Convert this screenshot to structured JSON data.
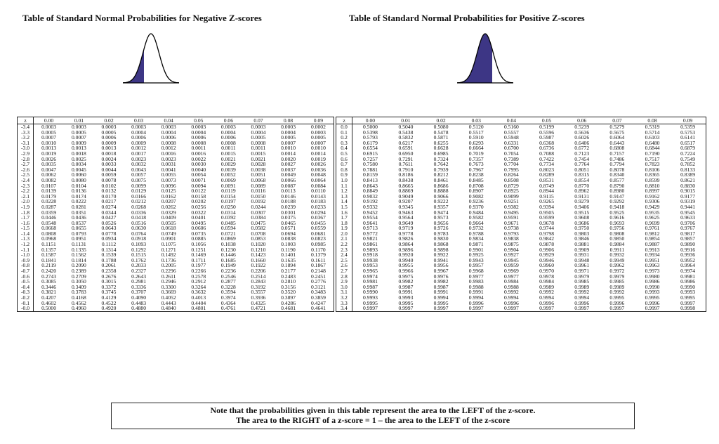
{
  "left": {
    "title": "Table of Standard Normal Probabilities for Negative Z-scores",
    "header": [
      "z",
      "0.00",
      "0.01",
      "0.02",
      "0.03",
      "0.04",
      "0.05",
      "0.06",
      "0.07",
      "0.08",
      "0.09"
    ],
    "rows": [
      [
        "-3.4",
        "0.0003",
        "0.0003",
        "0.0003",
        "0.0003",
        "0.0003",
        "0.0003",
        "0.0003",
        "0.0003",
        "0.0003",
        "0.0002"
      ],
      [
        "-3.3",
        "0.0005",
        "0.0005",
        "0.0005",
        "0.0004",
        "0.0004",
        "0.0004",
        "0.0004",
        "0.0004",
        "0.0004",
        "0.0003"
      ],
      [
        "-3.2",
        "0.0007",
        "0.0007",
        "0.0006",
        "0.0006",
        "0.0006",
        "0.0006",
        "0.0006",
        "0.0005",
        "0.0005",
        "0.0005"
      ],
      [
        "-3.1",
        "0.0010",
        "0.0009",
        "0.0009",
        "0.0009",
        "0.0008",
        "0.0008",
        "0.0008",
        "0.0008",
        "0.0007",
        "0.0007"
      ],
      [
        "-3.0",
        "0.0013",
        "0.0013",
        "0.0013",
        "0.0012",
        "0.0012",
        "0.0011",
        "0.0011",
        "0.0011",
        "0.0010",
        "0.0010"
      ],
      [
        "-2.9",
        "0.0019",
        "0.0018",
        "0.0018",
        "0.0017",
        "0.0016",
        "0.0016",
        "0.0015",
        "0.0015",
        "0.0014",
        "0.0014"
      ],
      [
        "-2.8",
        "0.0026",
        "0.0025",
        "0.0024",
        "0.0023",
        "0.0023",
        "0.0022",
        "0.0021",
        "0.0021",
        "0.0020",
        "0.0019"
      ],
      [
        "-2.7",
        "0.0035",
        "0.0034",
        "0.0033",
        "0.0032",
        "0.0031",
        "0.0030",
        "0.0029",
        "0.0028",
        "0.0027",
        "0.0026"
      ],
      [
        "-2.6",
        "0.0047",
        "0.0045",
        "0.0044",
        "0.0043",
        "0.0041",
        "0.0040",
        "0.0039",
        "0.0038",
        "0.0037",
        "0.0036"
      ],
      [
        "-2.5",
        "0.0062",
        "0.0060",
        "0.0059",
        "0.0057",
        "0.0055",
        "0.0054",
        "0.0052",
        "0.0051",
        "0.0049",
        "0.0048"
      ],
      [
        "-2.4",
        "0.0082",
        "0.0080",
        "0.0078",
        "0.0075",
        "0.0073",
        "0.0071",
        "0.0069",
        "0.0068",
        "0.0066",
        "0.0064"
      ],
      [
        "-2.3",
        "0.0107",
        "0.0104",
        "0.0102",
        "0.0099",
        "0.0096",
        "0.0094",
        "0.0091",
        "0.0089",
        "0.0087",
        "0.0084"
      ],
      [
        "-2.2",
        "0.0139",
        "0.0136",
        "0.0132",
        "0.0129",
        "0.0125",
        "0.0122",
        "0.0119",
        "0.0116",
        "0.0113",
        "0.0110"
      ],
      [
        "-2.1",
        "0.0179",
        "0.0174",
        "0.0170",
        "0.0166",
        "0.0162",
        "0.0158",
        "0.0154",
        "0.0150",
        "0.0146",
        "0.0143"
      ],
      [
        "-2.0",
        "0.0228",
        "0.0222",
        "0.0217",
        "0.0212",
        "0.0207",
        "0.0202",
        "0.0197",
        "0.0192",
        "0.0188",
        "0.0183"
      ],
      [
        "-1.9",
        "0.0287",
        "0.0281",
        "0.0274",
        "0.0268",
        "0.0262",
        "0.0256",
        "0.0250",
        "0.0244",
        "0.0239",
        "0.0233"
      ],
      [
        "-1.8",
        "0.0359",
        "0.0351",
        "0.0344",
        "0.0336",
        "0.0329",
        "0.0322",
        "0.0314",
        "0.0307",
        "0.0301",
        "0.0294"
      ],
      [
        "-1.7",
        "0.0446",
        "0.0436",
        "0.0427",
        "0.0418",
        "0.0409",
        "0.0401",
        "0.0392",
        "0.0384",
        "0.0375",
        "0.0367"
      ],
      [
        "-1.6",
        "0.0548",
        "0.0537",
        "0.0526",
        "0.0516",
        "0.0505",
        "0.0495",
        "0.0485",
        "0.0475",
        "0.0465",
        "0.0455"
      ],
      [
        "-1.5",
        "0.0668",
        "0.0655",
        "0.0643",
        "0.0630",
        "0.0618",
        "0.0606",
        "0.0594",
        "0.0582",
        "0.0571",
        "0.0559"
      ],
      [
        "-1.4",
        "0.0808",
        "0.0793",
        "0.0778",
        "0.0764",
        "0.0749",
        "0.0735",
        "0.0721",
        "0.0708",
        "0.0694",
        "0.0681"
      ],
      [
        "-1.3",
        "0.0968",
        "0.0951",
        "0.0934",
        "0.0918",
        "0.0901",
        "0.0885",
        "0.0869",
        "0.0853",
        "0.0838",
        "0.0823"
      ],
      [
        "-1.2",
        "0.1151",
        "0.1131",
        "0.1112",
        "0.1093",
        "0.1075",
        "0.1056",
        "0.1038",
        "0.1020",
        "0.1003",
        "0.0985"
      ],
      [
        "-1.1",
        "0.1357",
        "0.1335",
        "0.1314",
        "0.1292",
        "0.1271",
        "0.1251",
        "0.1230",
        "0.1210",
        "0.1190",
        "0.1170"
      ],
      [
        "-1.0",
        "0.1587",
        "0.1562",
        "0.1539",
        "0.1515",
        "0.1492",
        "0.1469",
        "0.1446",
        "0.1423",
        "0.1401",
        "0.1379"
      ],
      [
        "-0.9",
        "0.1841",
        "0.1814",
        "0.1788",
        "0.1762",
        "0.1736",
        "0.1711",
        "0.1685",
        "0.1660",
        "0.1635",
        "0.1611"
      ],
      [
        "-0.8",
        "0.2119",
        "0.2090",
        "0.2061",
        "0.2033",
        "0.2005",
        "0.1977",
        "0.1949",
        "0.1922",
        "0.1894",
        "0.1867"
      ],
      [
        "-0.7",
        "0.2420",
        "0.2389",
        "0.2358",
        "0.2327",
        "0.2296",
        "0.2266",
        "0.2236",
        "0.2206",
        "0.2177",
        "0.2148"
      ],
      [
        "-0.6",
        "0.2743",
        "0.2709",
        "0.2676",
        "0.2643",
        "0.2611",
        "0.2578",
        "0.2546",
        "0.2514",
        "0.2483",
        "0.2451"
      ],
      [
        "-0.5",
        "0.3085",
        "0.3050",
        "0.3015",
        "0.2981",
        "0.2946",
        "0.2912",
        "0.2877",
        "0.2843",
        "0.2810",
        "0.2776"
      ],
      [
        "-0.4",
        "0.3446",
        "0.3409",
        "0.3372",
        "0.3336",
        "0.3300",
        "0.3264",
        "0.3228",
        "0.3192",
        "0.3156",
        "0.3121"
      ],
      [
        "-0.3",
        "0.3821",
        "0.3783",
        "0.3745",
        "0.3707",
        "0.3669",
        "0.3632",
        "0.3594",
        "0.3557",
        "0.3520",
        "0.3483"
      ],
      [
        "-0.2",
        "0.4207",
        "0.4168",
        "0.4129",
        "0.4090",
        "0.4052",
        "0.4013",
        "0.3974",
        "0.3936",
        "0.3897",
        "0.3859"
      ],
      [
        "-0.1",
        "0.4602",
        "0.4562",
        "0.4522",
        "0.4483",
        "0.4443",
        "0.4404",
        "0.4364",
        "0.4325",
        "0.4286",
        "0.4247"
      ],
      [
        "-0.0",
        "0.5000",
        "0.4960",
        "0.4920",
        "0.4880",
        "0.4840",
        "0.4801",
        "0.4761",
        "0.4721",
        "0.4681",
        "0.4641"
      ]
    ]
  },
  "right": {
    "title": "Table of Standard Normal Probabilities for Positive Z-scores",
    "header": [
      "z",
      "0.00",
      "0.01",
      "0.02",
      "0.03",
      "0.04",
      "0.05",
      "0.06",
      "0.07",
      "0.08",
      "0.09"
    ],
    "rows": [
      [
        "0.0",
        "0.5000",
        "0.5040",
        "0.5080",
        "0.5120",
        "0.5160",
        "0.5199",
        "0.5239",
        "0.5279",
        "0.5319",
        "0.5359"
      ],
      [
        "0.1",
        "0.5398",
        "0.5438",
        "0.5478",
        "0.5517",
        "0.5557",
        "0.5596",
        "0.5636",
        "0.5675",
        "0.5714",
        "0.5753"
      ],
      [
        "0.2",
        "0.5793",
        "0.5832",
        "0.5871",
        "0.5910",
        "0.5948",
        "0.5987",
        "0.6026",
        "0.6064",
        "0.6103",
        "0.6141"
      ],
      [
        "0.3",
        "0.6179",
        "0.6217",
        "0.6255",
        "0.6293",
        "0.6331",
        "0.6368",
        "0.6406",
        "0.6443",
        "0.6480",
        "0.6517"
      ],
      [
        "0.4",
        "0.6554",
        "0.6591",
        "0.6628",
        "0.6664",
        "0.6700",
        "0.6736",
        "0.6772",
        "0.6808",
        "0.6844",
        "0.6879"
      ],
      [
        "0.5",
        "0.6915",
        "0.6950",
        "0.6985",
        "0.7019",
        "0.7054",
        "0.7088",
        "0.7123",
        "0.7157",
        "0.7190",
        "0.7224"
      ],
      [
        "0.6",
        "0.7257",
        "0.7291",
        "0.7324",
        "0.7357",
        "0.7389",
        "0.7422",
        "0.7454",
        "0.7486",
        "0.7517",
        "0.7549"
      ],
      [
        "0.7",
        "0.7580",
        "0.7611",
        "0.7642",
        "0.7673",
        "0.7704",
        "0.7734",
        "0.7764",
        "0.7794",
        "0.7823",
        "0.7852"
      ],
      [
        "0.8",
        "0.7881",
        "0.7910",
        "0.7939",
        "0.7967",
        "0.7995",
        "0.8023",
        "0.8051",
        "0.8078",
        "0.8106",
        "0.8133"
      ],
      [
        "0.9",
        "0.8159",
        "0.8186",
        "0.8212",
        "0.8238",
        "0.8264",
        "0.8289",
        "0.8315",
        "0.8340",
        "0.8365",
        "0.8389"
      ],
      [
        "1.0",
        "0.8413",
        "0.8438",
        "0.8461",
        "0.8485",
        "0.8508",
        "0.8531",
        "0.8554",
        "0.8577",
        "0.8599",
        "0.8621"
      ],
      [
        "1.1",
        "0.8643",
        "0.8665",
        "0.8686",
        "0.8708",
        "0.8729",
        "0.8749",
        "0.8770",
        "0.8790",
        "0.8810",
        "0.8830"
      ],
      [
        "1.2",
        "0.8849",
        "0.8869",
        "0.8888",
        "0.8907",
        "0.8925",
        "0.8944",
        "0.8962",
        "0.8980",
        "0.8997",
        "0.9015"
      ],
      [
        "1.3",
        "0.9032",
        "0.9049",
        "0.9066",
        "0.9082",
        "0.9099",
        "0.9115",
        "0.9131",
        "0.9147",
        "0.9162",
        "0.9177"
      ],
      [
        "1.4",
        "0.9192",
        "0.9207",
        "0.9222",
        "0.9236",
        "0.9251",
        "0.9265",
        "0.9279",
        "0.9292",
        "0.9306",
        "0.9319"
      ],
      [
        "1.5",
        "0.9332",
        "0.9345",
        "0.9357",
        "0.9370",
        "0.9382",
        "0.9394",
        "0.9406",
        "0.9418",
        "0.9429",
        "0.9441"
      ],
      [
        "1.6",
        "0.9452",
        "0.9463",
        "0.9474",
        "0.9484",
        "0.9495",
        "0.9505",
        "0.9515",
        "0.9525",
        "0.9535",
        "0.9545"
      ],
      [
        "1.7",
        "0.9554",
        "0.9564",
        "0.9573",
        "0.9582",
        "0.9591",
        "0.9599",
        "0.9608",
        "0.9616",
        "0.9625",
        "0.9633"
      ],
      [
        "1.8",
        "0.9641",
        "0.9649",
        "0.9656",
        "0.9664",
        "0.9671",
        "0.9678",
        "0.9686",
        "0.9693",
        "0.9699",
        "0.9706"
      ],
      [
        "1.9",
        "0.9713",
        "0.9719",
        "0.9726",
        "0.9732",
        "0.9738",
        "0.9744",
        "0.9750",
        "0.9756",
        "0.9761",
        "0.9767"
      ],
      [
        "2.0",
        "0.9772",
        "0.9778",
        "0.9783",
        "0.9788",
        "0.9793",
        "0.9798",
        "0.9803",
        "0.9808",
        "0.9812",
        "0.9817"
      ],
      [
        "2.1",
        "0.9821",
        "0.9826",
        "0.9830",
        "0.9834",
        "0.9838",
        "0.9842",
        "0.9846",
        "0.9850",
        "0.9854",
        "0.9857"
      ],
      [
        "2.2",
        "0.9861",
        "0.9864",
        "0.9868",
        "0.9871",
        "0.9875",
        "0.9878",
        "0.9881",
        "0.9884",
        "0.9887",
        "0.9890"
      ],
      [
        "2.3",
        "0.9893",
        "0.9896",
        "0.9898",
        "0.9901",
        "0.9904",
        "0.9906",
        "0.9909",
        "0.9911",
        "0.9913",
        "0.9916"
      ],
      [
        "2.4",
        "0.9918",
        "0.9920",
        "0.9922",
        "0.9925",
        "0.9927",
        "0.9929",
        "0.9931",
        "0.9932",
        "0.9934",
        "0.9936"
      ],
      [
        "2.5",
        "0.9938",
        "0.9940",
        "0.9941",
        "0.9943",
        "0.9945",
        "0.9946",
        "0.9948",
        "0.9949",
        "0.9951",
        "0.9952"
      ],
      [
        "2.6",
        "0.9953",
        "0.9955",
        "0.9956",
        "0.9957",
        "0.9959",
        "0.9960",
        "0.9961",
        "0.9962",
        "0.9963",
        "0.9964"
      ],
      [
        "2.7",
        "0.9965",
        "0.9966",
        "0.9967",
        "0.9968",
        "0.9969",
        "0.9970",
        "0.9971",
        "0.9972",
        "0.9973",
        "0.9974"
      ],
      [
        "2.8",
        "0.9974",
        "0.9975",
        "0.9976",
        "0.9977",
        "0.9977",
        "0.9978",
        "0.9979",
        "0.9979",
        "0.9980",
        "0.9981"
      ],
      [
        "2.9",
        "0.9981",
        "0.9982",
        "0.9982",
        "0.9983",
        "0.9984",
        "0.9984",
        "0.9985",
        "0.9985",
        "0.9986",
        "0.9986"
      ],
      [
        "3.0",
        "0.9987",
        "0.9987",
        "0.9987",
        "0.9988",
        "0.9988",
        "0.9989",
        "0.9989",
        "0.9989",
        "0.9990",
        "0.9990"
      ],
      [
        "3.1",
        "0.9990",
        "0.9991",
        "0.9991",
        "0.9991",
        "0.9992",
        "0.9992",
        "0.9992",
        "0.9992",
        "0.9993",
        "0.9993"
      ],
      [
        "3.2",
        "0.9993",
        "0.9993",
        "0.9994",
        "0.9994",
        "0.9994",
        "0.9994",
        "0.9994",
        "0.9995",
        "0.9995",
        "0.9995"
      ],
      [
        "3.3",
        "0.9995",
        "0.9995",
        "0.9995",
        "0.9996",
        "0.9996",
        "0.9996",
        "0.9996",
        "0.9996",
        "0.9996",
        "0.9997"
      ],
      [
        "3.4",
        "0.9997",
        "0.9997",
        "0.9997",
        "0.9997",
        "0.9997",
        "0.9997",
        "0.9997",
        "0.9997",
        "0.9997",
        "0.9998"
      ]
    ]
  },
  "note": {
    "line1": "Note that the probabilities given in this table represent the area to the LEFT of the z-score.",
    "line2": "The area to the RIGHT of a z-score = 1 – the area to the LEFT of the z-score"
  },
  "colors": {
    "shade": "#3d3685",
    "ink": "#111111"
  }
}
